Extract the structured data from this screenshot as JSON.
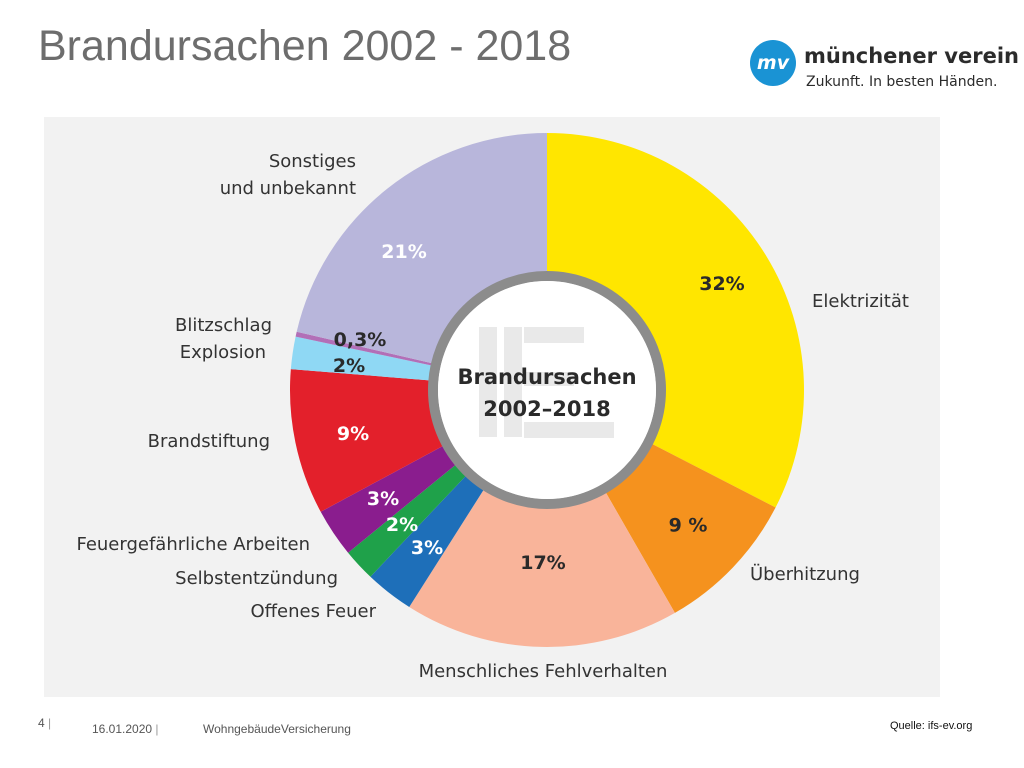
{
  "slide": {
    "title": "Brandursachen 2002 - 2018",
    "page_number": "4",
    "date": "16.01.2020",
    "document": "WohngebäudeVersicherung",
    "source": "Quelle: ifs-ev.org"
  },
  "logo": {
    "mark": "mv",
    "name": "münchener verein",
    "tagline": "Zukunft. In besten Händen.",
    "color": "#1a93d4"
  },
  "chart_data": {
    "type": "pie",
    "center_label": [
      "Brandursachen",
      "2002–2018"
    ],
    "segments": [
      {
        "label": "Elektrizität",
        "value": 32,
        "value_label": "32%",
        "color": "#ffe600"
      },
      {
        "label": "Überhitzung",
        "value": 9,
        "value_label": "9 %",
        "color": "#f5921e"
      },
      {
        "label": "Menschliches Fehlverhalten",
        "value": 17,
        "value_label": "17%",
        "color": "#f9b49a"
      },
      {
        "label": "Offenes Feuer",
        "value": 3,
        "value_label": "3%",
        "color": "#1e6fb9"
      },
      {
        "label": "Selbstentzündung",
        "value": 2,
        "value_label": "2%",
        "color": "#1fa14a"
      },
      {
        "label": "Feuergefährliche Arbeiten",
        "value": 3,
        "value_label": "3%",
        "color": "#8a1d8e"
      },
      {
        "label": "Brandstiftung",
        "value": 9,
        "value_label": "9%",
        "color": "#e3202b"
      },
      {
        "label": "Explosion",
        "value": 2,
        "value_label": "2%",
        "color": "#8fd8f4"
      },
      {
        "label": "Blitzschlag",
        "value": 0.3,
        "value_label": "0,3%",
        "color": "#b26fb7"
      },
      {
        "label": "Sonstiges und unbekannt",
        "value": 21,
        "value_label": "21%",
        "color": "#b8b6db"
      }
    ]
  }
}
